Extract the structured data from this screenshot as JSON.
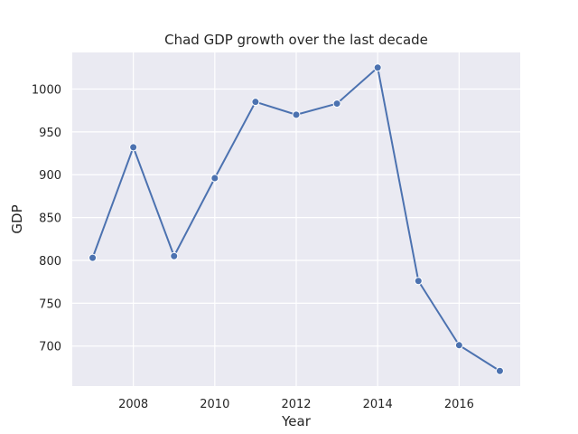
{
  "chart_data": {
    "type": "line",
    "title": "Chad GDP growth over the last decade",
    "xlabel": "Year",
    "ylabel": "GDP",
    "x": [
      2007,
      2008,
      2009,
      2010,
      2011,
      2012,
      2013,
      2014,
      2015,
      2016,
      2017
    ],
    "series": [
      {
        "values": [
          803,
          932,
          805,
          896,
          985,
          970,
          983,
          1025,
          776,
          701,
          671
        ]
      }
    ],
    "xticks": [
      2008,
      2010,
      2012,
      2014,
      2016
    ],
    "xtick_labels": [
      "2008",
      "2010",
      "2012",
      "2014",
      "2016"
    ],
    "yticks": [
      700,
      750,
      800,
      850,
      900,
      950,
      1000
    ],
    "ytick_labels": [
      "700",
      "750",
      "800",
      "850",
      "900",
      "950",
      "1000"
    ],
    "xlim": [
      2006.5,
      2017.5
    ],
    "ylim": [
      653.3,
      1042.7
    ],
    "grid": true,
    "marker": "circle",
    "colors": {
      "line": "#4c72b0",
      "plot_bg": "#eaeaf2",
      "grid": "#ffffff"
    }
  }
}
